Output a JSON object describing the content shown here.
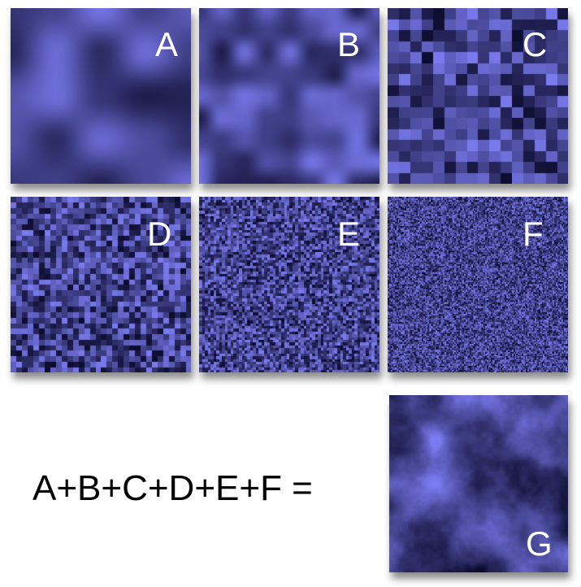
{
  "tiles": [
    {
      "label": "A",
      "cells": 4,
      "smooth": true
    },
    {
      "label": "B",
      "cells": 8,
      "smooth": true
    },
    {
      "label": "C",
      "cells": 16,
      "smooth": false
    },
    {
      "label": "D",
      "cells": 32,
      "smooth": false
    },
    {
      "label": "E",
      "cells": 64,
      "smooth": false
    },
    {
      "label": "F",
      "cells": 128,
      "smooth": false
    }
  ],
  "result": {
    "label": "G"
  },
  "equation": "A+B+C+D+E+F =",
  "colors": {
    "light": "#7b7bf0",
    "dark": "#0c0c2e",
    "background": "#ffffff",
    "label": "#ffffff"
  }
}
